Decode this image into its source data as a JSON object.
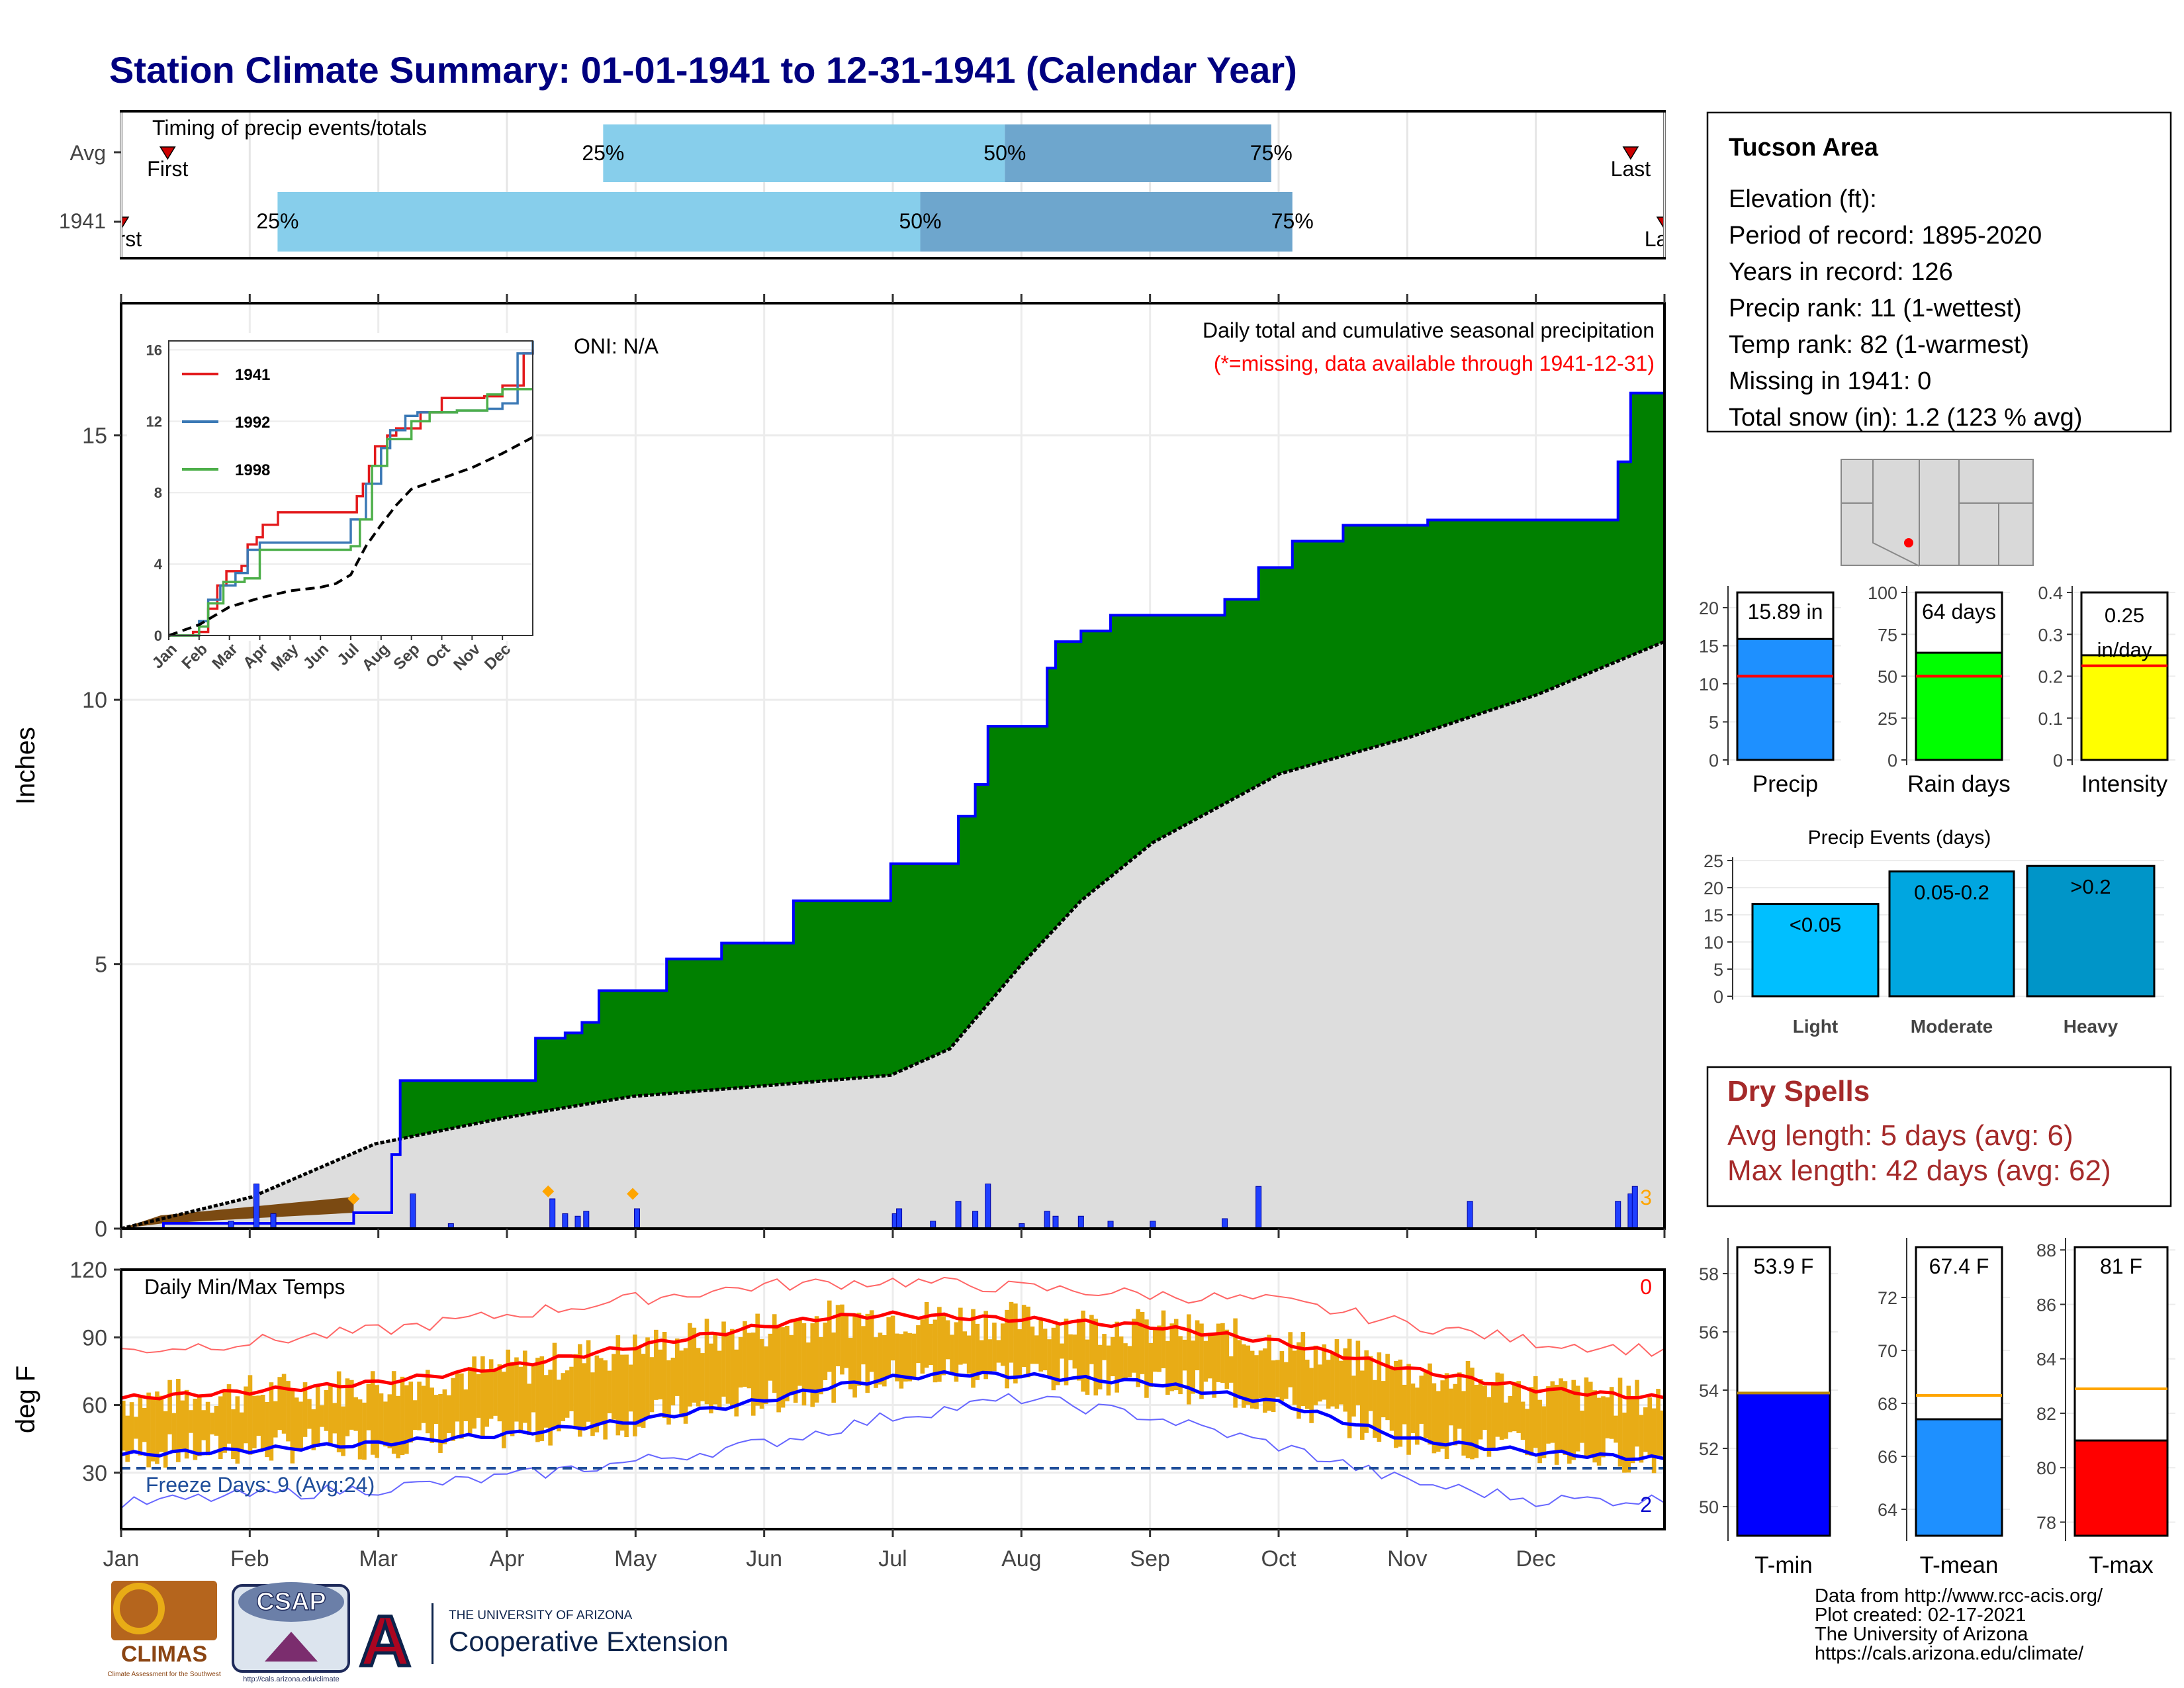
{
  "title": "Station Climate Summary: 01-01-1941 to 12-31-1941 (Calendar Year)",
  "timing": {
    "label": "Timing of precip events/totals",
    "rows": [
      {
        "name": "Avg",
        "first_label": "First",
        "last_label": "Last",
        "p25": "2024-04-24",
        "p50": "2024-07-28",
        "p75": "2024-09-29",
        "first": "2024-01-12",
        "last": "2024-12-23"
      },
      {
        "name": "1941",
        "first_label": "First",
        "last_label": "Last",
        "p25": "2024-02-07",
        "p50": "2024-07-08",
        "p75": "2024-10-04",
        "first": "2024-01-01",
        "last": "2024-12-31"
      }
    ],
    "pct_labels": [
      "25%",
      "50%",
      "75%"
    ]
  },
  "precip_panel": {
    "ylabel": "Inches",
    "oni": "ONI: N/A",
    "caption": "Daily total and cumulative seasonal precipitation",
    "missing_note": "(*=missing, data available through 1941-12-31)",
    "right_count": "3",
    "yticks": [
      0,
      5,
      10,
      15
    ],
    "ylim": [
      0,
      17.5
    ]
  },
  "chart_data": [
    {
      "type": "area",
      "title": "Daily total and cumulative seasonal precipitation",
      "ylabel": "Inches",
      "ylim": [
        0,
        17.5
      ],
      "series": [
        {
          "name": "1941",
          "x": [
            "01-01",
            "01-11",
            "02-25",
            "03-05",
            "03-07",
            "04-08",
            "04-15",
            "04-19",
            "04-23",
            "05-09",
            "05-22",
            "06-08",
            "07-01",
            "07-17",
            "07-21",
            "07-24",
            "08-07",
            "08-09",
            "08-15",
            "08-22",
            "09-18",
            "09-26",
            "10-04",
            "10-16",
            "11-05",
            "12-20",
            "12-23",
            "12-31"
          ],
          "y": [
            0,
            0.1,
            0.3,
            1.4,
            2.8,
            3.6,
            3.7,
            3.9,
            4.5,
            5.1,
            5.4,
            6.2,
            6.9,
            7.8,
            8.4,
            9.5,
            10.6,
            11.1,
            11.3,
            11.6,
            11.9,
            12.5,
            13.0,
            13.3,
            13.4,
            14.5,
            15.8,
            16.0
          ]
        },
        {
          "name": "Average",
          "x": [
            "01-01",
            "02-01",
            "03-01",
            "04-01",
            "05-01",
            "06-01",
            "07-01",
            "07-15",
            "08-01",
            "08-15",
            "09-01",
            "10-01",
            "11-01",
            "12-01",
            "12-31"
          ],
          "y": [
            0,
            0.6,
            1.6,
            2.1,
            2.5,
            2.7,
            2.9,
            3.4,
            5.0,
            6.2,
            7.3,
            8.6,
            9.3,
            10.1,
            11.1
          ]
        }
      ],
      "daily_bars": {
        "x": [
          "01-27",
          "02-02",
          "02-06",
          "03-10",
          "03-19",
          "04-12",
          "04-15",
          "04-18",
          "04-20",
          "05-02",
          "07-02",
          "07-03",
          "07-11",
          "07-17",
          "07-21",
          "07-24",
          "08-01",
          "08-07",
          "08-09",
          "08-15",
          "08-22",
          "09-01",
          "09-18",
          "09-26",
          "11-15",
          "12-20",
          "12-23",
          "12-24"
        ],
        "y": [
          0.15,
          0.9,
          0.3,
          0.7,
          0.1,
          0.6,
          0.3,
          0.25,
          0.35,
          0.4,
          0.3,
          0.4,
          0.15,
          0.55,
          0.35,
          0.9,
          0.1,
          0.35,
          0.25,
          0.25,
          0.15,
          0.15,
          0.2,
          0.85,
          0.55,
          0.55,
          0.7,
          0.85
        ]
      },
      "snow_markers": {
        "x": [
          "02-25",
          "04-11",
          "05-01"
        ],
        "y": [
          0.6,
          0.75,
          0.7
        ]
      }
    },
    {
      "type": "line",
      "title": "inset cumulative precipitation",
      "xticks": [
        "Jan",
        "Feb",
        "Mar",
        "Apr",
        "May",
        "Jun",
        "Jul",
        "Aug",
        "Sep",
        "Oct",
        "Nov",
        "Dec"
      ],
      "yticks": [
        0,
        4,
        8,
        12,
        16
      ],
      "ylim": [
        0,
        16.5
      ],
      "series": [
        {
          "name": "1941",
          "color": "#e31a1c",
          "x": [
            0,
            0.8,
            1.3,
            1.6,
            1.9,
            2.4,
            2.6,
            2.9,
            3.1,
            3.6,
            4.2,
            5.0,
            6.2,
            6.4,
            6.6,
            6.8,
            7.2,
            7.5,
            8.3,
            9.0,
            10.4,
            11.0,
            11.7,
            12.0
          ],
          "y": [
            0,
            0.2,
            1.5,
            2.8,
            3.6,
            3.9,
            5.1,
            5.5,
            6.2,
            6.9,
            6.9,
            6.9,
            7.8,
            8.5,
            9.5,
            10.6,
            11.2,
            11.6,
            12.5,
            13.3,
            13.4,
            14.0,
            15.8,
            16.0
          ]
        },
        {
          "name": "1992",
          "color": "#3a78b5",
          "x": [
            0,
            1.0,
            1.3,
            1.7,
            2.2,
            2.6,
            3.0,
            3.5,
            4.5,
            5.0,
            6.0,
            6.5,
            7.0,
            7.3,
            7.8,
            8.2,
            9.5,
            10.5,
            11.0,
            11.5,
            12.0
          ],
          "y": [
            0,
            0.8,
            2.0,
            2.8,
            3.5,
            4.8,
            5.2,
            5.2,
            5.2,
            5.2,
            6.5,
            8.5,
            10.5,
            11.5,
            12.3,
            12.5,
            12.6,
            12.7,
            13.0,
            15.8,
            16.5
          ]
        },
        {
          "name": "1998",
          "color": "#4daf4a",
          "x": [
            0,
            1.0,
            1.3,
            1.8,
            2.5,
            3.0,
            4.0,
            5.2,
            6.0,
            6.3,
            6.7,
            7.2,
            8.0,
            8.6,
            9.5,
            10.5,
            11.0,
            12.0
          ],
          "y": [
            0,
            0.5,
            1.8,
            3.0,
            3.2,
            4.8,
            4.8,
            4.8,
            5.0,
            6.5,
            9.5,
            11.0,
            12.0,
            12.5,
            12.6,
            13.5,
            13.8,
            13.8
          ]
        },
        {
          "name": "Average",
          "color": "#000000",
          "x": [
            0,
            1,
            2,
            3,
            4,
            5,
            5.5,
            6,
            6.5,
            7,
            7.5,
            8,
            9,
            10,
            11,
            12
          ],
          "y": [
            0,
            0.6,
            1.6,
            2.1,
            2.5,
            2.7,
            2.9,
            3.4,
            5.0,
            6.2,
            7.3,
            8.2,
            8.8,
            9.4,
            10.2,
            11.1
          ]
        }
      ]
    },
    {
      "type": "bar",
      "title": "Precip",
      "value_label": "15.89 in",
      "values": [
        15.89
      ],
      "avg": 11.0,
      "yticks": [
        0,
        5,
        10,
        15,
        20
      ],
      "ylim": [
        0,
        22
      ]
    },
    {
      "type": "bar",
      "title": "Rain days",
      "value_label": "64 days",
      "values": [
        64
      ],
      "avg": 50,
      "yticks": [
        0,
        25,
        50,
        75,
        100
      ],
      "ylim": [
        0,
        100
      ]
    },
    {
      "type": "bar",
      "title": "Intensity",
      "value_label": "0.25 in/day",
      "values": [
        0.25
      ],
      "avg": 0.225,
      "yticks": [
        0.0,
        0.1,
        0.2,
        0.3,
        0.4
      ],
      "ylim": [
        0,
        0.4
      ]
    },
    {
      "type": "bar",
      "title": "Precip Events (days)",
      "categories": [
        "Light",
        "Moderate",
        "Heavy"
      ],
      "bar_labels": [
        "<0.05",
        "0.05-0.2",
        ">0.2"
      ],
      "values": [
        17,
        23,
        24
      ],
      "yticks": [
        0,
        5,
        10,
        15,
        20,
        25
      ],
      "ylim": [
        0,
        25
      ]
    },
    {
      "type": "line",
      "title": "Daily Min/Max Temps",
      "ylabel": "deg F",
      "yticks": [
        30,
        60,
        90,
        120
      ],
      "ylim": [
        5,
        120
      ],
      "xticks": [
        "Jan",
        "Feb",
        "Mar",
        "Apr",
        "May",
        "Jun",
        "Jul",
        "Aug",
        "Sep",
        "Oct",
        "Nov",
        "Dec"
      ],
      "series": [
        {
          "name": "avg max",
          "x": [
            0,
            1,
            2,
            3,
            4,
            5,
            5.5,
            6,
            6.5,
            7,
            8,
            9,
            10,
            11,
            12
          ],
          "y": [
            63,
            66,
            70,
            77,
            86,
            95,
            99,
            100,
            99,
            98,
            95,
            88,
            76,
            67,
            63
          ]
        },
        {
          "name": "avg min",
          "x": [
            0,
            1,
            2,
            3,
            4,
            5,
            5.5,
            6,
            6.5,
            7,
            8,
            9,
            10,
            11,
            12
          ],
          "y": [
            38,
            40,
            43,
            47,
            53,
            62,
            68,
            72,
            74,
            73,
            70,
            61,
            45,
            39,
            36
          ]
        },
        {
          "name": "record max",
          "x": [
            0,
            1,
            2,
            3,
            4,
            5,
            6,
            7,
            8,
            9,
            10,
            11,
            12
          ],
          "y": [
            84,
            88,
            93,
            100,
            107,
            113,
            115,
            112,
            109,
            106,
            96,
            88,
            84
          ]
        },
        {
          "name": "record min",
          "x": [
            0,
            1,
            2,
            3,
            4,
            5,
            6,
            7,
            8,
            9,
            10,
            11,
            12
          ],
          "y": [
            16,
            20,
            23,
            28,
            35,
            43,
            55,
            63,
            55,
            42,
            26,
            18,
            18
          ]
        }
      ],
      "freeze_line": 32,
      "freeze_label": "Freeze Days: 9 (Avg:24)",
      "count_top": "0",
      "count_bottom": "2"
    },
    {
      "type": "bar",
      "title": "T-min",
      "value_label": "53.9 F",
      "values": [
        53.9
      ],
      "avg": 53.9,
      "yticks": [
        50,
        52,
        54,
        56,
        58
      ],
      "ylim": [
        49,
        59
      ]
    },
    {
      "type": "bar",
      "title": "T-mean",
      "value_label": "67.4 F",
      "values": [
        67.4
      ],
      "avg": 68.3,
      "yticks": [
        64,
        66,
        68,
        70,
        72
      ],
      "ylim": [
        63,
        74
      ]
    },
    {
      "type": "bar",
      "title": "T-max",
      "value_label": "81 F",
      "values": [
        81.0
      ],
      "avg": 82.9,
      "yticks": [
        78,
        80,
        82,
        84,
        86,
        88
      ],
      "ylim": [
        77.5,
        88.2
      ]
    }
  ],
  "months": [
    "Jan",
    "Feb",
    "Mar",
    "Apr",
    "May",
    "Jun",
    "Jul",
    "Aug",
    "Sep",
    "Oct",
    "Nov",
    "Dec"
  ],
  "info_box": {
    "station": "Tucson Area",
    "lines": [
      "Elevation (ft):",
      "Period of record: 1895-2020",
      "Years in record: 126",
      "Precip rank: 11 (1-wettest)",
      "Temp rank: 82 (1-warmest)",
      "Missing in 1941: 0",
      "Total snow (in): 1.2 (123 % avg)"
    ]
  },
  "dry_spells": {
    "title": "Dry Spells",
    "avg": "Avg length: 5 days (avg: 6)",
    "max": "Max length: 42 days (avg: 62)"
  },
  "footer": {
    "lines": [
      "Data from http://www.rcc-acis.org/",
      "Plot created: 02-17-2021",
      "The University of Arizona",
      "https://cals.arizona.edu/climate/"
    ],
    "logos": {
      "climas": "CLIMAS",
      "climas_sub": "Climate Assessment for the Southwest",
      "csap": "CSAP",
      "csap_url": "http://cals.arizona.edu/climate",
      "ua_small": "THE UNIVERSITY OF ARIZONA",
      "ua_big": "Cooperative Extension",
      "ua_letter": "A"
    }
  },
  "colors": {
    "title": "#000080",
    "green": "#008000",
    "grey": "#dddddd",
    "blue": "#0000ff",
    "light_blue": "#87ceeb",
    "mid_blue": "#6ea6cd",
    "orange": "#e8ac16",
    "dry": "#a52a2a",
    "red": "#ff0000"
  }
}
